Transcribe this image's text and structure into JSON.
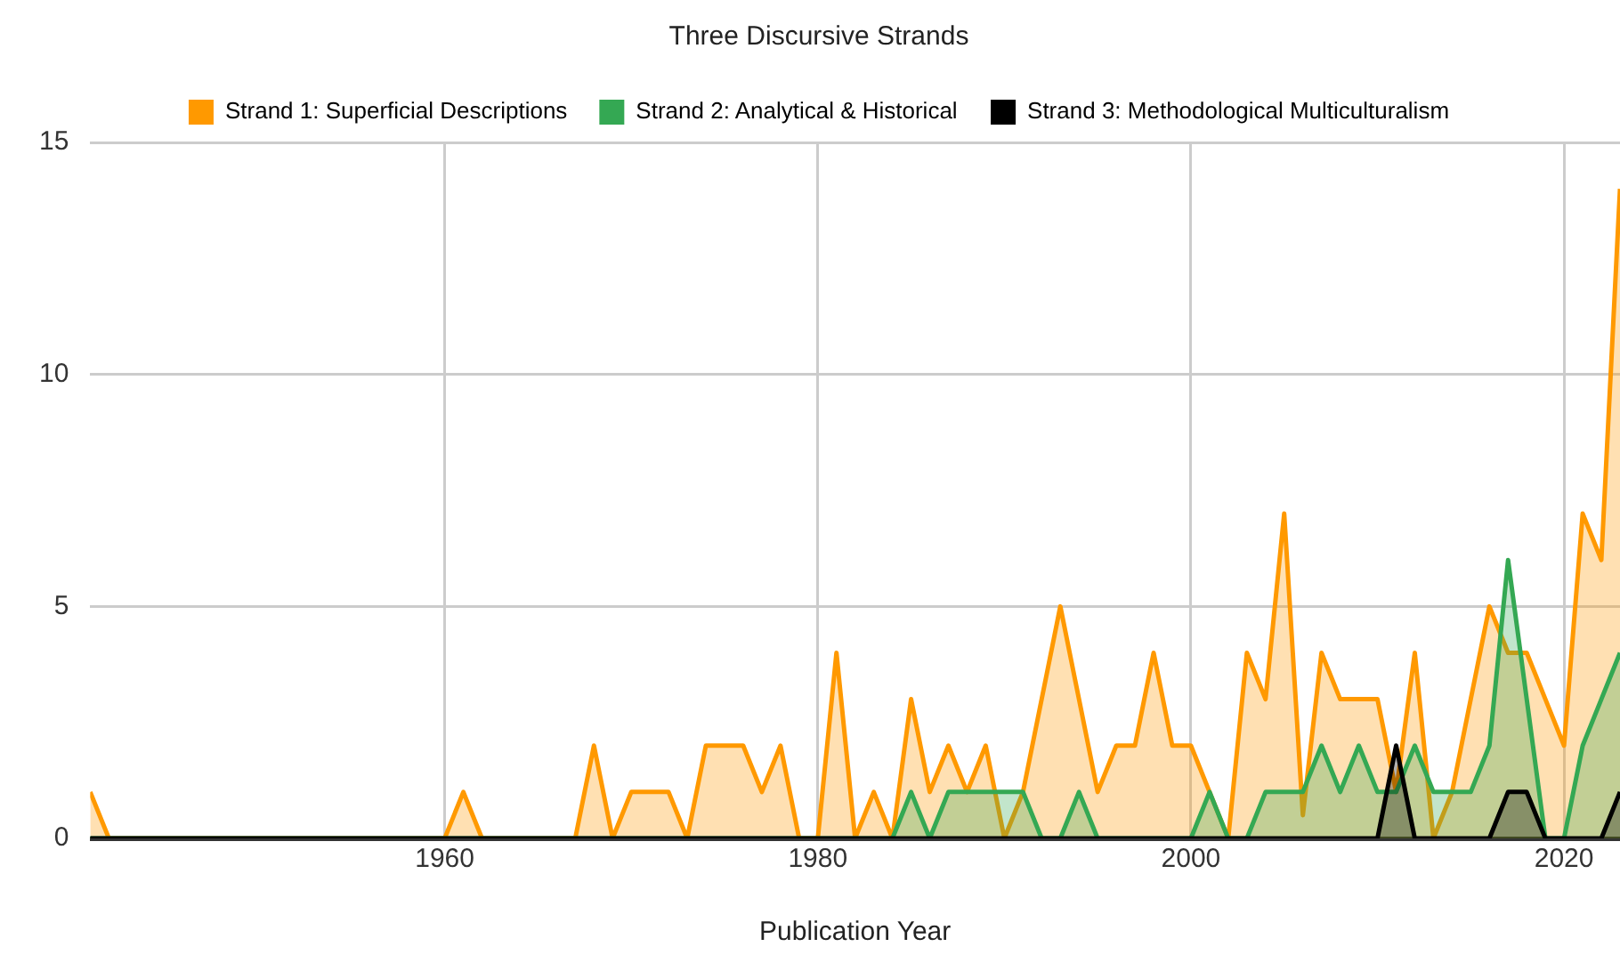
{
  "chart_data": {
    "type": "area",
    "title": "Three Discursive Strands",
    "xlabel": "Publication Year",
    "x": [
      1941,
      1942,
      1943,
      1944,
      1945,
      1946,
      1947,
      1948,
      1949,
      1950,
      1951,
      1952,
      1953,
      1954,
      1955,
      1956,
      1957,
      1958,
      1959,
      1960,
      1961,
      1962,
      1963,
      1964,
      1965,
      1966,
      1967,
      1968,
      1969,
      1970,
      1971,
      1972,
      1973,
      1974,
      1975,
      1976,
      1977,
      1978,
      1979,
      1980,
      1981,
      1982,
      1983,
      1984,
      1985,
      1986,
      1987,
      1988,
      1989,
      1990,
      1991,
      1992,
      1993,
      1994,
      1995,
      1996,
      1997,
      1998,
      1999,
      2000,
      2001,
      2002,
      2003,
      2004,
      2005,
      2006,
      2007,
      2008,
      2009,
      2010,
      2011,
      2012,
      2013,
      2014,
      2015,
      2016,
      2017,
      2018,
      2019,
      2020,
      2021,
      2022,
      2023
    ],
    "series": [
      {
        "name": "Strand 1: Superficial Descriptions",
        "color": "#ff9900",
        "values": [
          1,
          0,
          0,
          0,
          0,
          0,
          0,
          0,
          0,
          0,
          0,
          0,
          0,
          0,
          0,
          0,
          0,
          0,
          0,
          0,
          1,
          0,
          0,
          0,
          0,
          0,
          0,
          2,
          0,
          1,
          1,
          1,
          0,
          2,
          2,
          2,
          1,
          2,
          0,
          0,
          4,
          0,
          1,
          0,
          3,
          1,
          2,
          1,
          2,
          0,
          1,
          3,
          5,
          3,
          1,
          2,
          2,
          4,
          2,
          2,
          1,
          0,
          4,
          3,
          7,
          0.5,
          4,
          3,
          3,
          3,
          1,
          4,
          0,
          1,
          3,
          5,
          4,
          4,
          3,
          2,
          7,
          6,
          14
        ]
      },
      {
        "name": "Strand 2: Analytical & Historical",
        "color": "#34a853",
        "values": [
          0,
          0,
          0,
          0,
          0,
          0,
          0,
          0,
          0,
          0,
          0,
          0,
          0,
          0,
          0,
          0,
          0,
          0,
          0,
          0,
          0,
          0,
          0,
          0,
          0,
          0,
          0,
          0,
          0,
          0,
          0,
          0,
          0,
          0,
          0,
          0,
          0,
          0,
          0,
          0,
          0,
          0,
          0,
          0,
          1,
          0,
          1,
          1,
          1,
          1,
          1,
          0,
          0,
          1,
          0,
          0,
          0,
          0,
          0,
          0,
          1,
          0,
          0,
          1,
          1,
          1,
          2,
          1,
          2,
          1,
          1,
          2,
          1,
          1,
          1,
          2,
          6,
          3,
          0,
          0,
          2,
          3,
          4
        ]
      },
      {
        "name": "Strand 3: Methodological Multiculturalism",
        "color": "#000000",
        "values": [
          0,
          0,
          0,
          0,
          0,
          0,
          0,
          0,
          0,
          0,
          0,
          0,
          0,
          0,
          0,
          0,
          0,
          0,
          0,
          0,
          0,
          0,
          0,
          0,
          0,
          0,
          0,
          0,
          0,
          0,
          0,
          0,
          0,
          0,
          0,
          0,
          0,
          0,
          0,
          0,
          0,
          0,
          0,
          0,
          0,
          0,
          0,
          0,
          0,
          0,
          0,
          0,
          0,
          0,
          0,
          0,
          0,
          0,
          0,
          0,
          0,
          0,
          0,
          0,
          0,
          0,
          0,
          0,
          0,
          0,
          2,
          0,
          0,
          0,
          0,
          0,
          1,
          1,
          0,
          0,
          0,
          0,
          1
        ]
      }
    ],
    "xlim": [
      1941,
      2023
    ],
    "xticks": [
      1960,
      1980,
      2000,
      2020
    ],
    "ylim": [
      0,
      15
    ],
    "yticks": [
      0,
      5,
      10,
      15
    ],
    "grid": true,
    "legend": "top",
    "marker": "none",
    "line_style": "solid"
  }
}
